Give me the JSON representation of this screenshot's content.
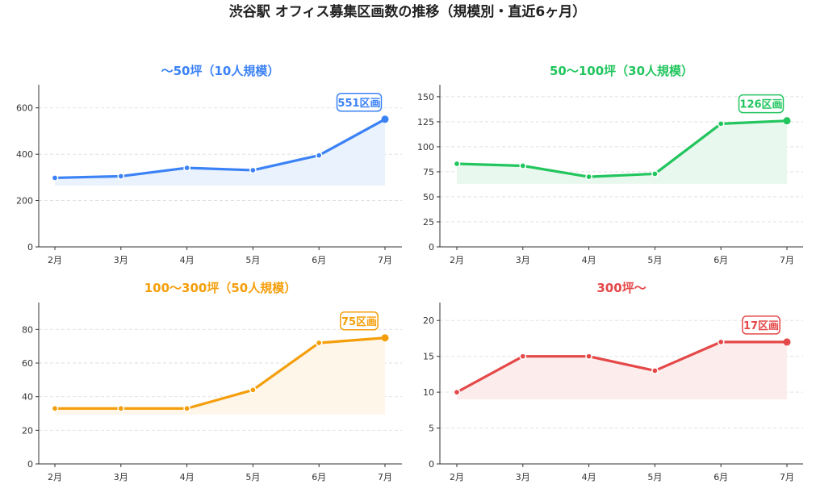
{
  "figure": {
    "title": "渋谷駅 オフィス募集区画数の推移（規模別・直近6ヶ月）"
  },
  "chart_data": [
    {
      "type": "line",
      "title": "〜50坪（10人規模）",
      "color": "#3B82F6",
      "fill": "#EAF2FE",
      "categories": [
        "2月",
        "3月",
        "4月",
        "5月",
        "6月",
        "7月"
      ],
      "values": [
        298,
        305,
        341,
        331,
        395,
        551
      ],
      "yticks": [
        0,
        200,
        400,
        600
      ],
      "ylim": [
        0,
        700
      ],
      "fill_base": 265,
      "grid": true,
      "annotation": "551区画"
    },
    {
      "type": "line",
      "title": "50〜100坪（30人規模）",
      "color": "#22C55E",
      "fill": "#E9F8EE",
      "categories": [
        "2月",
        "3月",
        "4月",
        "5月",
        "6月",
        "7月"
      ],
      "values": [
        83,
        81,
        70,
        73,
        123,
        126
      ],
      "yticks": [
        0,
        25,
        50,
        75,
        100,
        125,
        150
      ],
      "ylim": [
        0,
        162
      ],
      "fill_base": 63,
      "grid": true,
      "annotation": "126区画"
    },
    {
      "type": "line",
      "title": "100〜300坪（50人規模）",
      "color": "#F59E0B",
      "fill": "#FEF6E9",
      "categories": [
        "2月",
        "3月",
        "4月",
        "5月",
        "6月",
        "7月"
      ],
      "values": [
        33,
        33,
        33,
        44,
        72,
        75
      ],
      "yticks": [
        0,
        20,
        40,
        60,
        80
      ],
      "ylim": [
        0,
        96
      ],
      "fill_base": 29.5,
      "grid": true,
      "annotation": "75区画"
    },
    {
      "type": "line",
      "title": "300坪〜",
      "color": "#E54848",
      "fill": "#FCECEC",
      "categories": [
        "2月",
        "3月",
        "4月",
        "5月",
        "6月",
        "7月"
      ],
      "values": [
        10,
        15,
        15,
        13,
        17,
        17
      ],
      "yticks": [
        0,
        5,
        10,
        15,
        20
      ],
      "ylim": [
        0,
        22.5
      ],
      "fill_base": 9,
      "grid": true,
      "annotation": "17区画"
    }
  ]
}
